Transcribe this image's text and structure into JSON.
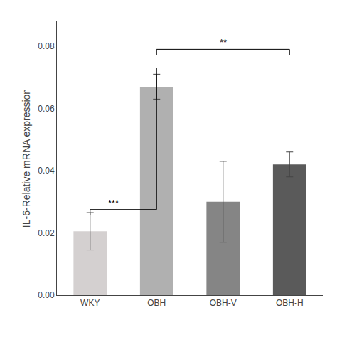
{
  "chart_data": {
    "type": "bar",
    "categories": [
      "WKY",
      "OBH",
      "OBH-V",
      "OBH-H"
    ],
    "values": [
      0.0205,
      0.067,
      0.03,
      0.042
    ],
    "errors": [
      0.006,
      0.004,
      0.013,
      0.004
    ],
    "colors": [
      "#d4d0d0",
      "#b0b0b0",
      "#858585",
      "#5a5a5a"
    ],
    "ylabel": "IL-6-Relative mRNA expression",
    "ylim": [
      0,
      0.088
    ],
    "yticks": [
      {
        "value": 0.0,
        "label": "0.00"
      },
      {
        "value": 0.02,
        "label": "0.02"
      },
      {
        "value": 0.04,
        "label": "0.04"
      },
      {
        "value": 0.06,
        "label": "0.06"
      },
      {
        "value": 0.08,
        "label": "0.08"
      }
    ],
    "grid": false,
    "annotations": [
      {
        "text": "***",
        "from": "WKY",
        "to": "OBH",
        "y_left": 0.0275,
        "y_right": 0.073
      },
      {
        "text": "**",
        "from": "OBH",
        "to": "OBH-H",
        "y": 0.079
      }
    ]
  }
}
